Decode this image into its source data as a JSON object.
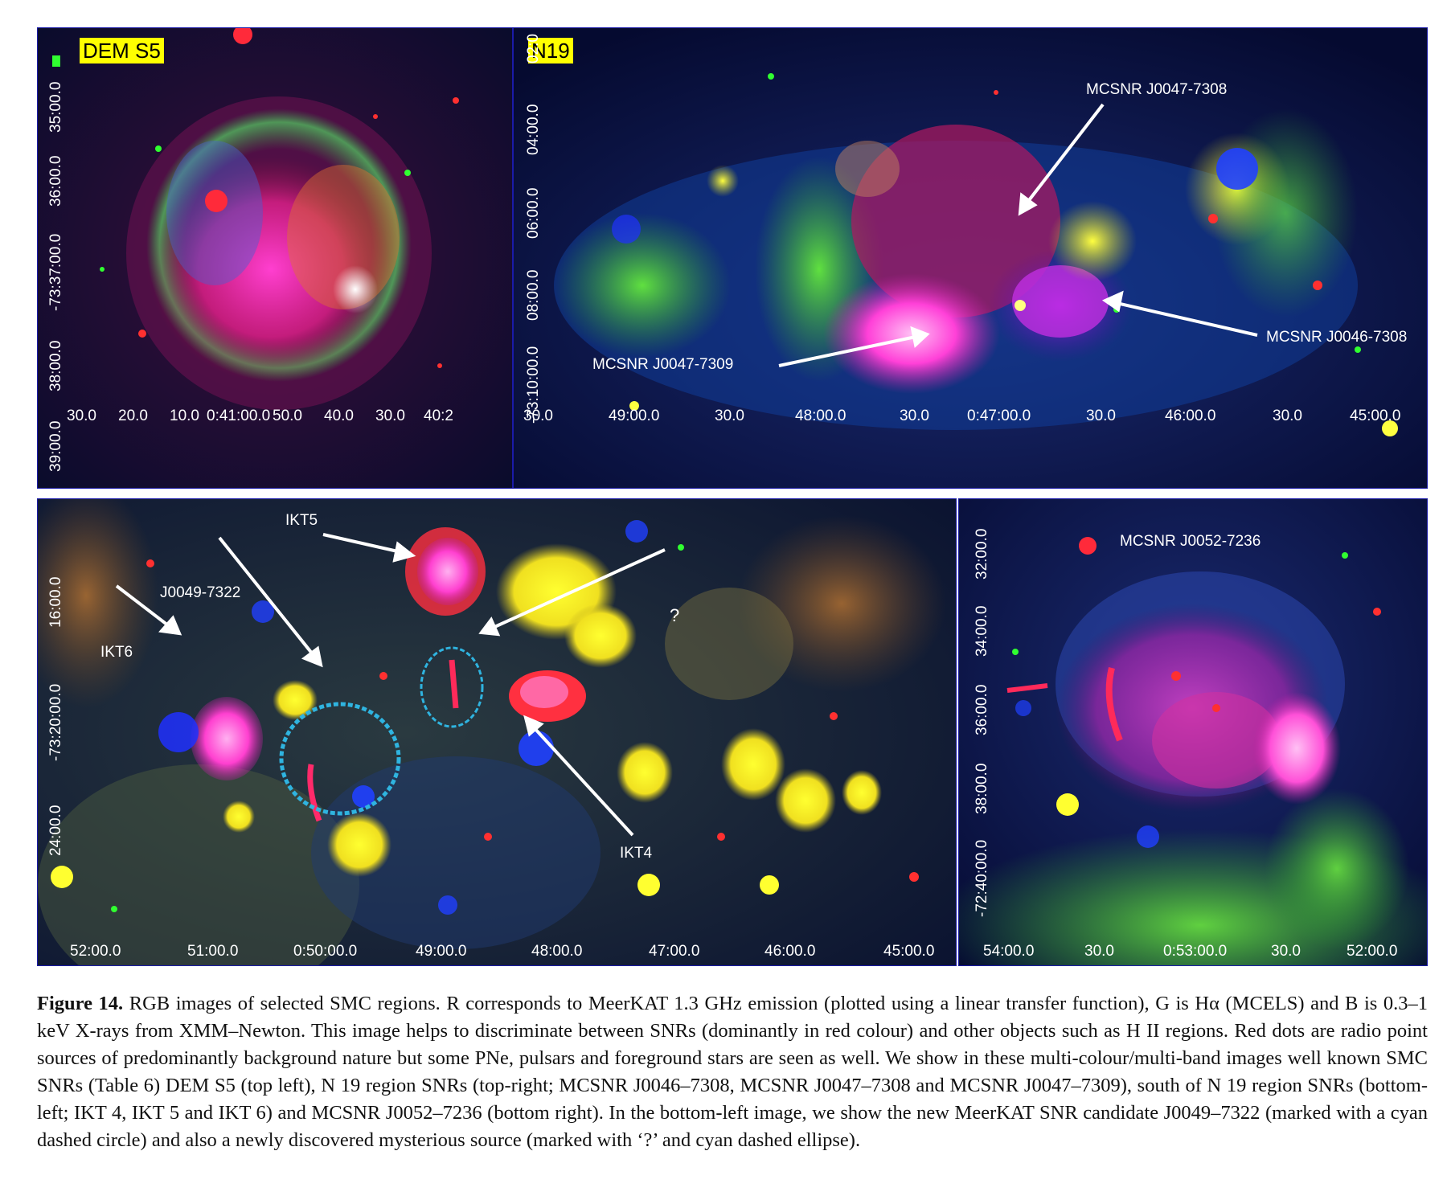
{
  "panels": {
    "top_left": {
      "tag": "DEM S5",
      "x_ticks": [
        "30.0",
        "20.0",
        "10.0",
        "0:41:00.0",
        "50.0",
        "40.0",
        "30.0",
        "40:2"
      ],
      "y_ticks": [
        "35:00.0",
        "36:00.0",
        "-73:37:00.0",
        "38:00.0",
        "39:00.0"
      ]
    },
    "top_right": {
      "tag": "N19",
      "labels": [
        "MCSNR J0047-7308",
        "MCSNR J0047-7309",
        "MCSNR J0046-7308"
      ],
      "x_ticks": [
        "30.0",
        "49:00.0",
        "30.0",
        "48:00.0",
        "30.0",
        "0:47:00.0",
        "30.0",
        "46:00.0",
        "30.0",
        "45:00.0"
      ],
      "y_ticks": [
        "02:0",
        "04:00.0",
        "06:00.0",
        "08:00.0",
        "-73:10:00.0"
      ]
    },
    "bottom_left": {
      "labels": [
        "IKT5",
        "J0049-7322",
        "IKT6",
        "?",
        "IKT4"
      ],
      "x_ticks": [
        "52:00.0",
        "51:00.0",
        "0:50:00.0",
        "49:00.0",
        "48:00.0",
        "47:00.0",
        "46:00.0",
        "45:00.0"
      ],
      "y_ticks": [
        "16:00.0",
        "-73:20:00.0",
        "24:00.0"
      ]
    },
    "bottom_right": {
      "labels": [
        "MCSNR J0052-7236"
      ],
      "x_ticks": [
        "54:00.0",
        "30.0",
        "0:53:00.0",
        "30.0",
        "52:00.0"
      ],
      "y_ticks": [
        "32:00.0",
        "34:00.0",
        "36:00.0",
        "38:00.0",
        "-72:40:00.0"
      ]
    }
  },
  "caption": {
    "figure_label": "Figure 14.",
    "text": "RGB images of selected SMC regions. R corresponds to MeerKAT 1.3 GHz emission (plotted using a linear transfer function), G is Hα (MCELS) and B is 0.3–1 keV X-rays from XMM–Newton. This image helps to discriminate between SNRs (dominantly in red colour) and other objects such as H II regions. Red dots are radio point sources of predominantly background nature but some PNe, pulsars and foreground stars are seen as well. We show in these multi-colour/multi-band images well known SMC SNRs (Table 6) DEM S5 (top left), N 19 region SNRs (top-right; MCSNR J0046–7308, MCSNR J0047–7308 and MCSNR J0047–7309), south of N 19 region SNRs (bottom-left; IKT 4, IKT 5 and IKT 6) and MCSNR J0052–7236 (bottom right). In the bottom-left image, we show the new MeerKAT SNR candidate J0049–7322 (marked with a cyan dashed circle) and also a newly discovered mysterious source (marked with ‘?’ and cyan dashed ellipse)."
  },
  "colors": {
    "frame": "#1b1ba8",
    "tag_bg": "#ffff00",
    "annotation": "#ffffff",
    "candidate_marker": "#2fb4e0"
  }
}
